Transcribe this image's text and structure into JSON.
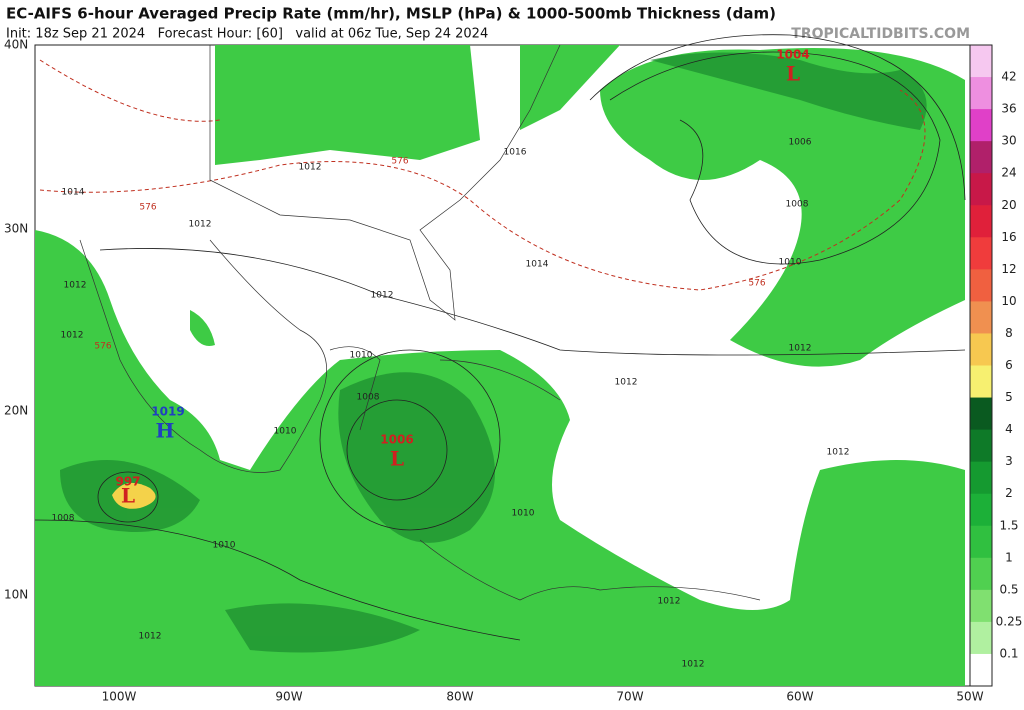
{
  "header": {
    "title": "EC-AIFS 6-hour Averaged Precip Rate (mm/hr), MSLP (hPa) & 1000-500mb Thickness (dam)",
    "subtitle": "Init: 18z Sep 21 2024   Forecast Hour: [60]   valid at 06z Tue, Sep 24 2024",
    "watermark": "TROPICALTIDBITS.COM"
  },
  "map": {
    "lat_labels": [
      "40N",
      "30N",
      "20N",
      "10N"
    ],
    "lon_labels": [
      "100W",
      "90W",
      "80W",
      "70W",
      "60W",
      "50W"
    ],
    "centers": [
      {
        "value": "1004",
        "letter": "L"
      },
      {
        "value": "1006",
        "letter": "L"
      },
      {
        "value": "1019",
        "letter": "H"
      },
      {
        "value": "997",
        "letter": "L"
      }
    ],
    "isobar_labels": [
      "1016",
      "1006",
      "1008",
      "1010",
      "1012",
      "1014",
      "1012",
      "1012",
      "1014",
      "1012",
      "1012",
      "1012",
      "1010",
      "1008",
      "1012",
      "1012",
      "1010",
      "1010",
      "1008",
      "1012",
      "1012",
      "1012",
      "1010"
    ],
    "thickness_labels": [
      "576",
      "576",
      "576",
      "576"
    ]
  },
  "colorbar": [
    "42",
    "36",
    "30",
    "24",
    "20",
    "16",
    "12",
    "10",
    "8",
    "6",
    "5",
    "4",
    "3",
    "2",
    "1.5",
    "1",
    "0.5",
    "0.25",
    "0.1"
  ]
}
